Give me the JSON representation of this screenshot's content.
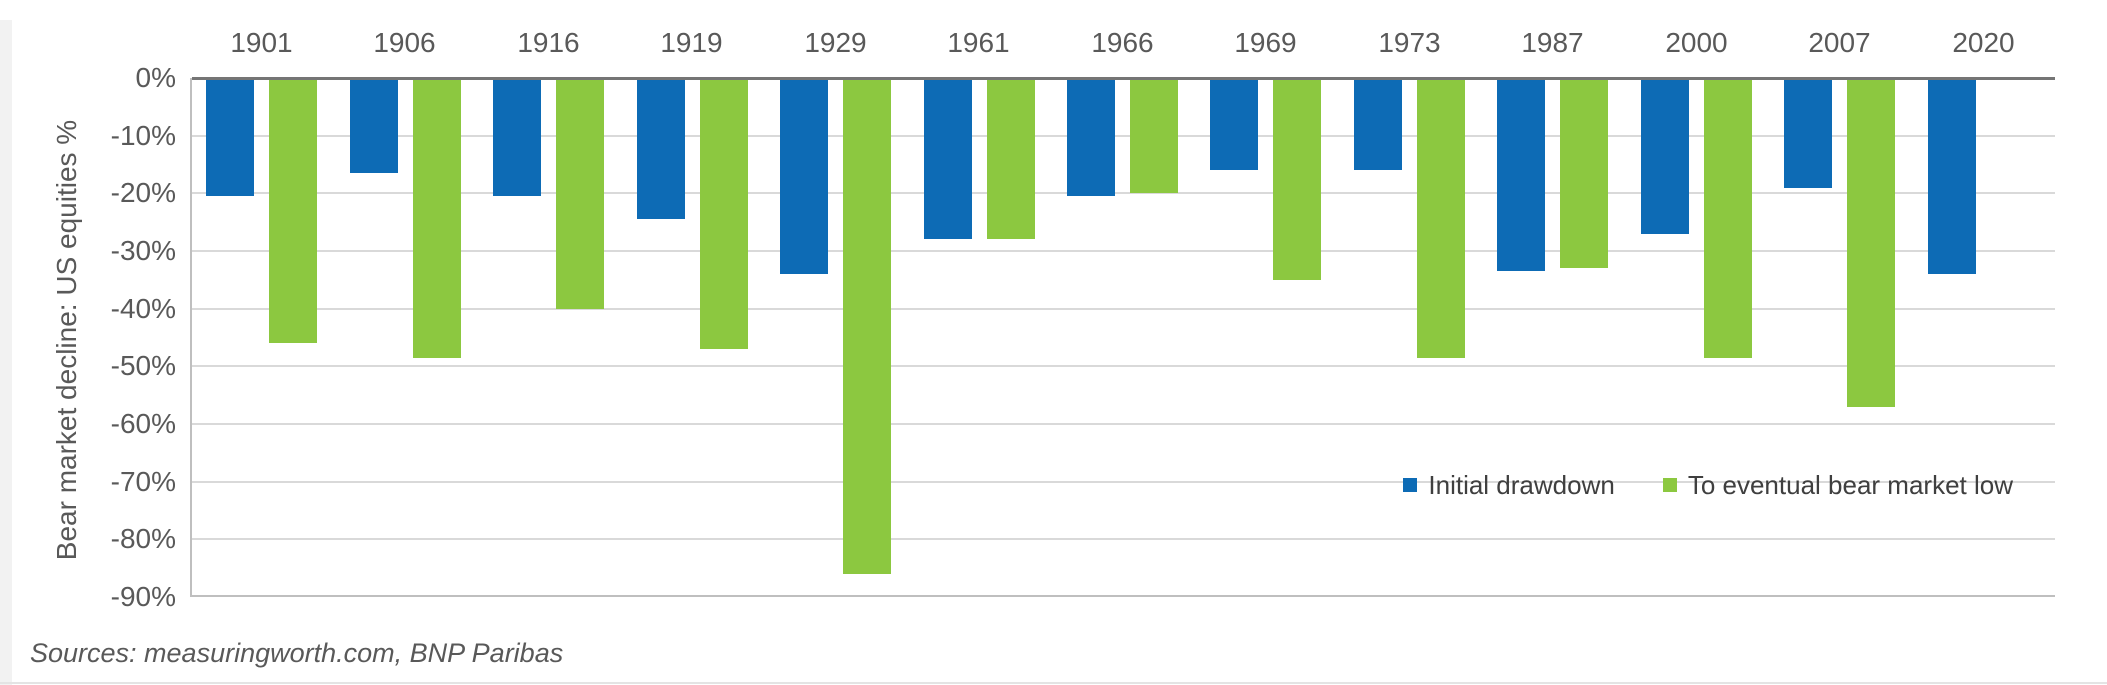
{
  "source_note": "Sources: measuringworth.com, BNP Paribas",
  "colors": {
    "initial_drawdown_blue": "#0d6bb5",
    "bear_low_green": "#8cc840",
    "axis_text": "#595959",
    "legend_text": "#3f3f3f",
    "gridline": "#d9d9d9",
    "plot_border": "#bfbfbf",
    "zero_line": "#757575"
  },
  "chart_data": {
    "type": "bar",
    "title": "",
    "xlabel": "",
    "ylabel": "Bear market decline: US equities %",
    "categories": [
      "1901",
      "1906",
      "1916",
      "1919",
      "1929",
      "1961",
      "1966",
      "1969",
      "1973",
      "1987",
      "2000",
      "2007",
      "2020"
    ],
    "series": [
      {
        "name": "Initial drawdown",
        "color": "#0d6bb5",
        "values": [
          -20.5,
          -16.5,
          -20.5,
          -24.5,
          -34,
          -28,
          -20.5,
          -16,
          -16,
          -33.5,
          -27,
          -19,
          -34
        ]
      },
      {
        "name": "To eventual bear market low",
        "color": "#8cc840",
        "values": [
          -46,
          -48.5,
          -40,
          -47,
          -86,
          -28,
          -20,
          -35,
          -48.5,
          -33,
          -48.5,
          -57,
          null
        ]
      }
    ],
    "ylim": [
      -90,
      0
    ],
    "ytick_step": 10,
    "y_ticks": [
      "0%",
      "-10%",
      "-20%",
      "-30%",
      "-40%",
      "-50%",
      "-60%",
      "-70%",
      "-80%",
      "-90%"
    ],
    "grid": true,
    "legend_position": "inside-bottom-right"
  }
}
